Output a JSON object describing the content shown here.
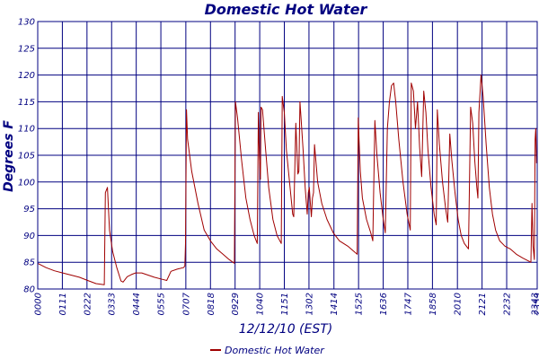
{
  "chart_data": {
    "type": "line",
    "title": "Domestic Hot Water",
    "xlabel": "12/12/10 (EST)",
    "ylabel": "Degrees F",
    "ylim": [
      80,
      130
    ],
    "y_ticks": [
      80,
      85,
      90,
      95,
      100,
      105,
      110,
      115,
      120,
      125,
      130
    ],
    "xlim_hours": [
      0,
      24
    ],
    "x_ticks": [
      "00:00",
      "01:11",
      "02:22",
      "03:33",
      "04:44",
      "05:55",
      "07:07",
      "08:18",
      "09:29",
      "10:40",
      "11:51",
      "13:02",
      "14:14",
      "15:25",
      "16:36",
      "17:47",
      "18:58",
      "20:10",
      "21:21",
      "22:32",
      "23:43",
      "23:59"
    ],
    "grid": true,
    "legend": "bottom-center",
    "series": [
      {
        "name": "Domestic Hot Water",
        "color": "#a00000",
        "points": [
          [
            0.0,
            84.8
          ],
          [
            0.4,
            84.0
          ],
          [
            0.8,
            83.4
          ],
          [
            1.2,
            83.0
          ],
          [
            1.6,
            82.6
          ],
          [
            2.0,
            82.2
          ],
          [
            2.4,
            81.6
          ],
          [
            2.8,
            81.0
          ],
          [
            3.2,
            80.8
          ],
          [
            3.25,
            98.0
          ],
          [
            3.35,
            99.0
          ],
          [
            3.45,
            91.0
          ],
          [
            3.6,
            87.0
          ],
          [
            3.8,
            84.0
          ],
          [
            4.0,
            81.5
          ],
          [
            4.1,
            81.3
          ],
          [
            4.3,
            82.3
          ],
          [
            4.5,
            82.7
          ],
          [
            4.7,
            83.0
          ],
          [
            5.0,
            83.0
          ],
          [
            5.3,
            82.6
          ],
          [
            5.6,
            82.2
          ],
          [
            6.0,
            81.8
          ],
          [
            6.2,
            81.6
          ],
          [
            6.4,
            83.3
          ],
          [
            6.7,
            83.7
          ],
          [
            7.0,
            84.0
          ],
          [
            7.07,
            84.3
          ],
          [
            7.1,
            88.5
          ],
          [
            7.15,
            113.5
          ],
          [
            7.2,
            108.0
          ],
          [
            7.4,
            102.0
          ],
          [
            7.7,
            96.0
          ],
          [
            8.0,
            91.0
          ],
          [
            8.3,
            89.0
          ],
          [
            8.6,
            87.5
          ],
          [
            8.9,
            86.5
          ],
          [
            9.2,
            85.5
          ],
          [
            9.45,
            84.8
          ],
          [
            9.5,
            115.0
          ],
          [
            9.6,
            112.0
          ],
          [
            9.8,
            104.0
          ],
          [
            10.0,
            97.0
          ],
          [
            10.2,
            93.0
          ],
          [
            10.4,
            90.0
          ],
          [
            10.55,
            88.5
          ],
          [
            10.6,
            113.0
          ],
          [
            10.65,
            105.0
          ],
          [
            10.7,
            100.5
          ],
          [
            10.73,
            114.0
          ],
          [
            10.8,
            113.5
          ],
          [
            10.95,
            106.0
          ],
          [
            11.1,
            99.0
          ],
          [
            11.3,
            93.0
          ],
          [
            11.5,
            90.0
          ],
          [
            11.7,
            88.5
          ],
          [
            11.75,
            116.0
          ],
          [
            11.85,
            113.0
          ],
          [
            11.95,
            106.0
          ],
          [
            12.1,
            100.0
          ],
          [
            12.25,
            94.0
          ],
          [
            12.3,
            93.5
          ],
          [
            12.4,
            111.0
          ],
          [
            12.5,
            101.5
          ],
          [
            12.55,
            102.0
          ],
          [
            12.6,
            115.0
          ],
          [
            12.65,
            112.0
          ],
          [
            12.75,
            106.0
          ],
          [
            12.85,
            99.0
          ],
          [
            12.95,
            94.0
          ],
          [
            13.0,
            98.0
          ],
          [
            13.05,
            99.0
          ],
          [
            13.1,
            96.0
          ],
          [
            13.15,
            93.5
          ],
          [
            13.2,
            97.0
          ],
          [
            13.25,
            98.0
          ],
          [
            13.3,
            107.0
          ],
          [
            13.45,
            100.0
          ],
          [
            13.65,
            96.0
          ],
          [
            13.9,
            93.0
          ],
          [
            14.2,
            90.5
          ],
          [
            14.5,
            89.0
          ],
          [
            14.9,
            88.0
          ],
          [
            15.2,
            87.0
          ],
          [
            15.35,
            86.5
          ],
          [
            15.4,
            112.0
          ],
          [
            15.45,
            107.0
          ],
          [
            15.5,
            102.0
          ],
          [
            15.6,
            97.0
          ],
          [
            15.8,
            93.0
          ],
          [
            16.0,
            90.5
          ],
          [
            16.1,
            89.0
          ],
          [
            16.2,
            111.5
          ],
          [
            16.3,
            105.0
          ],
          [
            16.45,
            98.0
          ],
          [
            16.6,
            93.0
          ],
          [
            16.7,
            90.5
          ],
          [
            16.8,
            110.0
          ],
          [
            16.9,
            115.0
          ],
          [
            17.0,
            118.0
          ],
          [
            17.1,
            118.5
          ],
          [
            17.2,
            115.0
          ],
          [
            17.35,
            108.0
          ],
          [
            17.55,
            100.0
          ],
          [
            17.75,
            94.0
          ],
          [
            17.9,
            91.0
          ],
          [
            17.95,
            118.5
          ],
          [
            18.05,
            117.0
          ],
          [
            18.15,
            110.0
          ],
          [
            18.25,
            115.0
          ],
          [
            18.35,
            106.5
          ],
          [
            18.45,
            101.0
          ],
          [
            18.55,
            117.0
          ],
          [
            18.65,
            113.0
          ],
          [
            18.75,
            106.0
          ],
          [
            18.9,
            99.0
          ],
          [
            19.05,
            94.0
          ],
          [
            19.15,
            92.0
          ],
          [
            19.2,
            113.5
          ],
          [
            19.3,
            107.0
          ],
          [
            19.45,
            100.0
          ],
          [
            19.6,
            95.0
          ],
          [
            19.7,
            92.5
          ],
          [
            19.8,
            109.0
          ],
          [
            19.9,
            104.0
          ],
          [
            20.05,
            98.0
          ],
          [
            20.2,
            93.0
          ],
          [
            20.35,
            90.0
          ],
          [
            20.5,
            88.5
          ],
          [
            20.7,
            87.5
          ],
          [
            20.8,
            114.0
          ],
          [
            20.9,
            111.0
          ],
          [
            21.0,
            104.0
          ],
          [
            21.1,
            99.0
          ],
          [
            21.15,
            97.0
          ],
          [
            21.2,
            113.0
          ],
          [
            21.3,
            120.0
          ],
          [
            21.4,
            116.0
          ],
          [
            21.55,
            107.0
          ],
          [
            21.7,
            99.0
          ],
          [
            21.85,
            94.0
          ],
          [
            22.0,
            91.0
          ],
          [
            22.2,
            89.0
          ],
          [
            22.45,
            88.0
          ],
          [
            22.7,
            87.5
          ],
          [
            23.0,
            86.5
          ],
          [
            23.3,
            85.8
          ],
          [
            23.55,
            85.3
          ],
          [
            23.7,
            85.0
          ],
          [
            23.75,
            96.0
          ],
          [
            23.8,
            88.0
          ],
          [
            23.86,
            85.5
          ],
          [
            23.9,
            108.0
          ],
          [
            23.93,
            110.0
          ],
          [
            23.97,
            103.5
          ]
        ]
      }
    ]
  }
}
